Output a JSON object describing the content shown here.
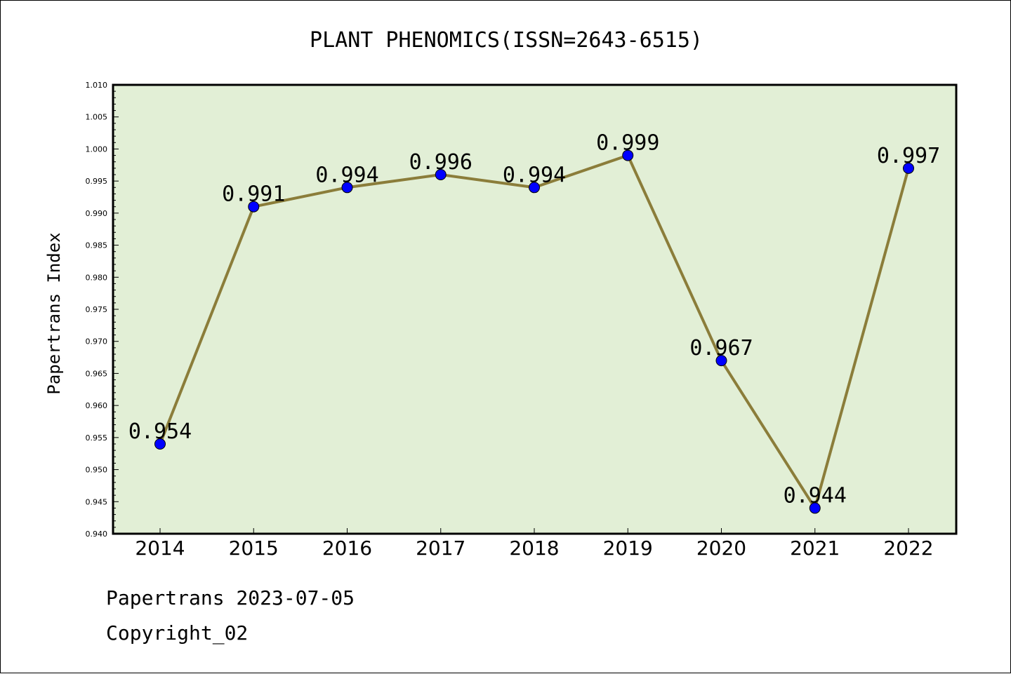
{
  "chart_data": {
    "type": "line",
    "title": "PLANT PHENOMICS(ISSN=2643-6515)",
    "xlabel": "",
    "ylabel": "Papertrans Index",
    "categories": [
      "2014",
      "2015",
      "2016",
      "2017",
      "2018",
      "2019",
      "2020",
      "2021",
      "2022"
    ],
    "series": [
      {
        "values": [
          0.954,
          0.991,
          0.994,
          0.996,
          0.994,
          0.999,
          0.967,
          0.944,
          0.997
        ],
        "labels": [
          "0.954",
          "0.991",
          "0.994",
          "0.996",
          "0.994",
          "0.999",
          "0.967",
          "0.944",
          "0.997"
        ]
      }
    ],
    "ylim": [
      0.94,
      1.01
    ],
    "yticks": [
      "0.940",
      "0.945",
      "0.950",
      "0.955",
      "0.960",
      "0.965",
      "0.970",
      "0.975",
      "0.980",
      "0.985",
      "0.990",
      "0.995",
      "1.000",
      "1.005",
      "1.010"
    ],
    "grid": false,
    "colors": {
      "plot_background": "#e2efd6",
      "line": "#8b7d3a",
      "marker": "#0000ff"
    }
  },
  "footer": {
    "line1": "Papertrans 2023-07-05",
    "line2": "Copyright_02"
  }
}
